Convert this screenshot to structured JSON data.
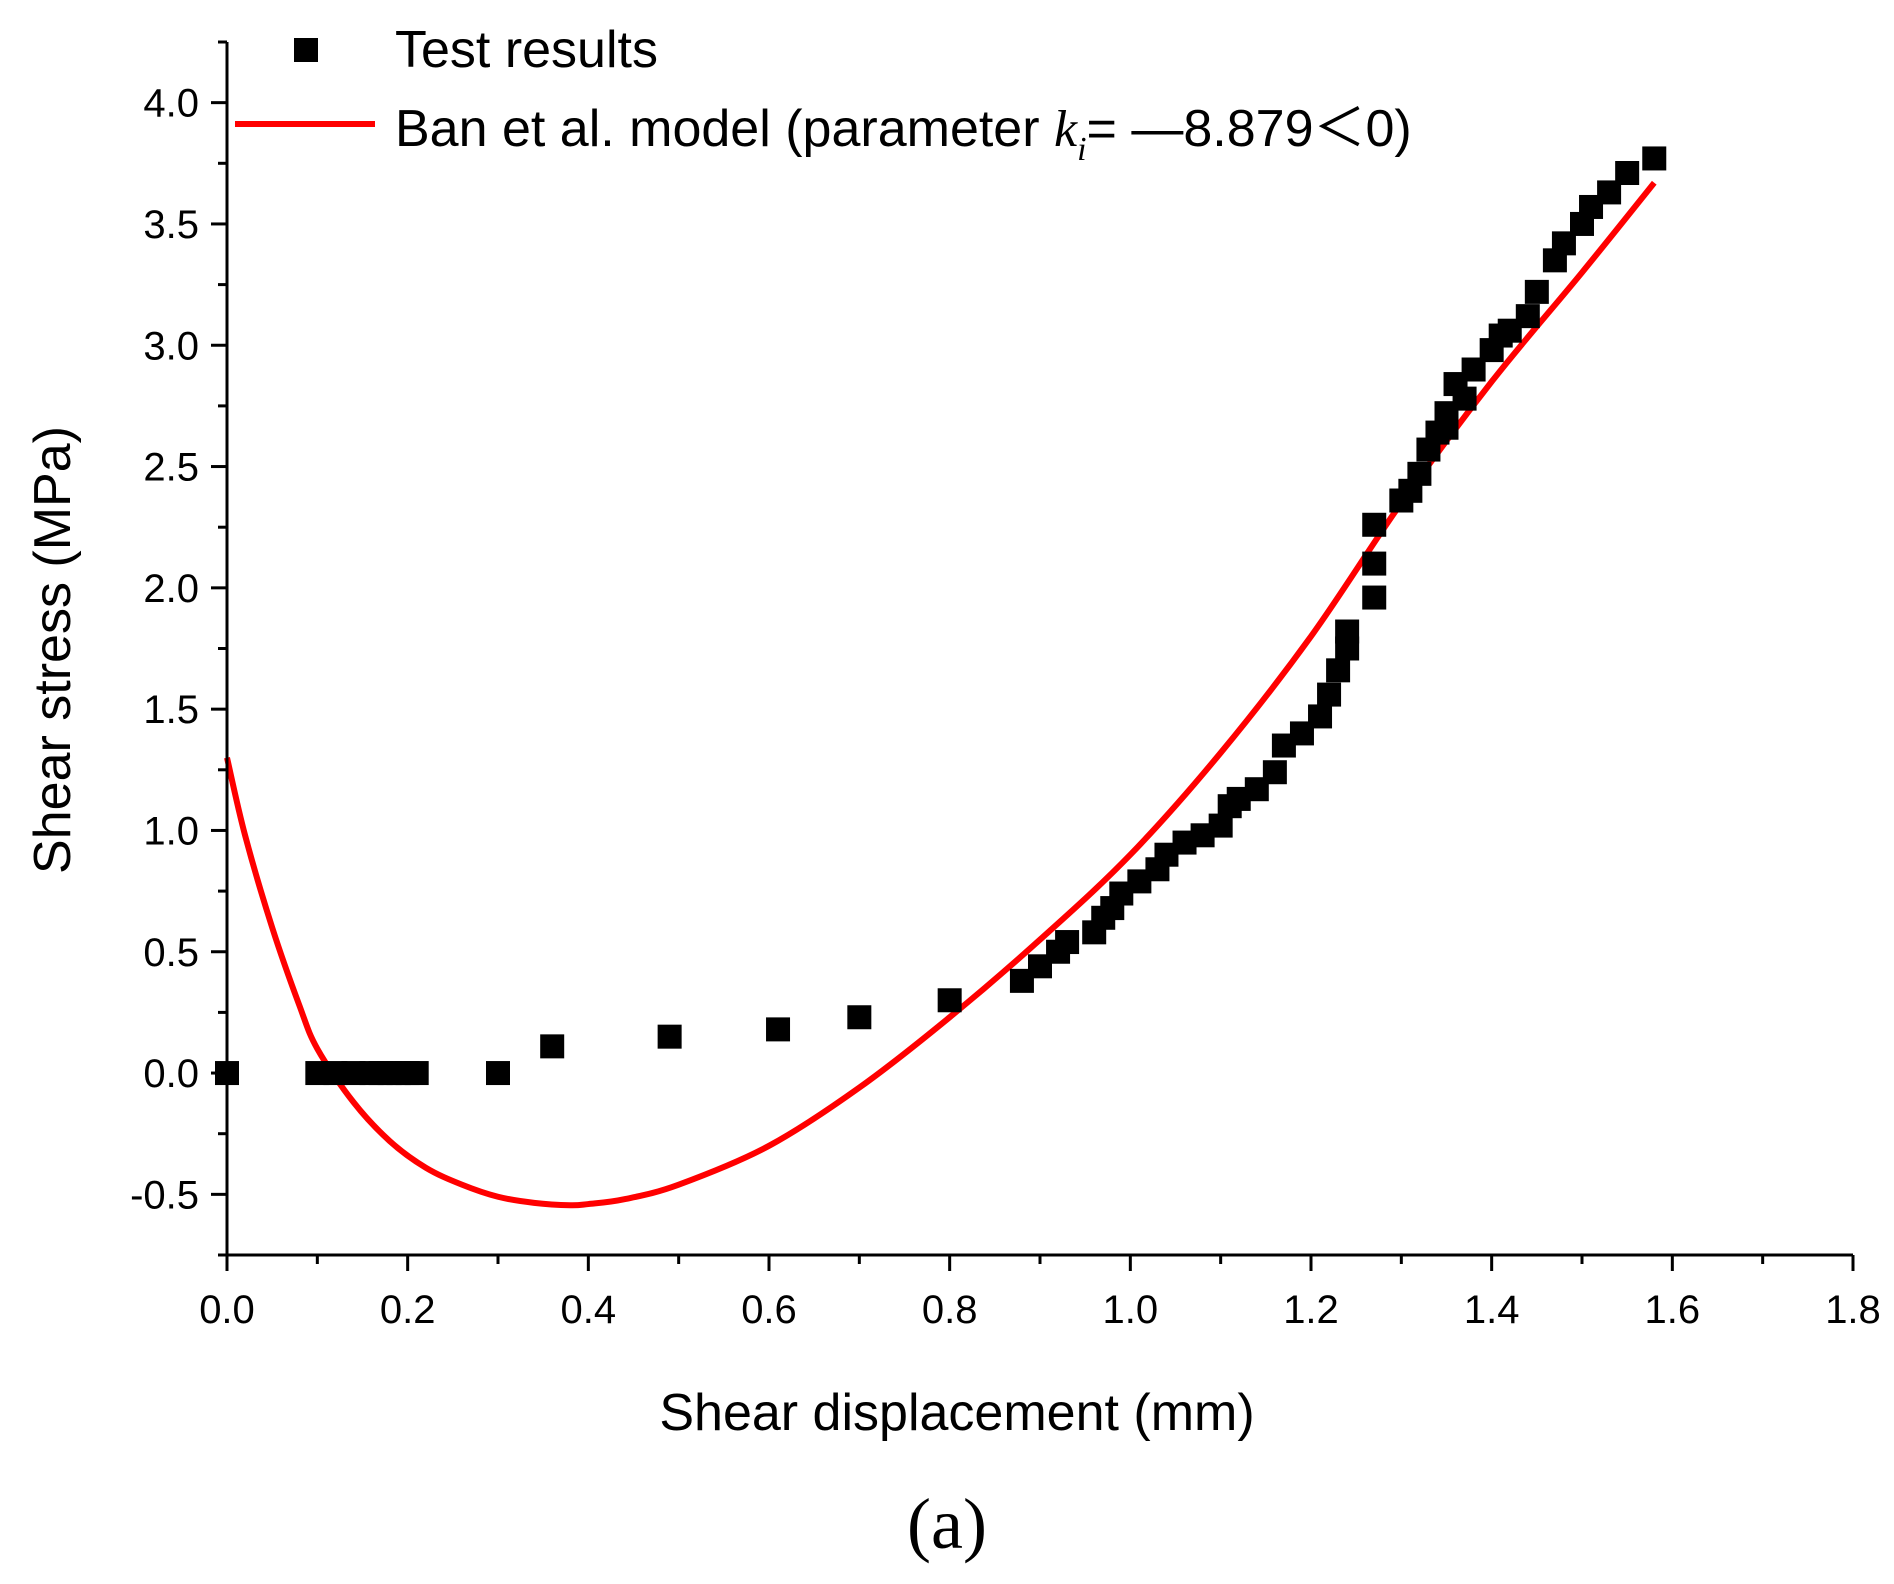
{
  "chart_data": {
    "type": "scatter",
    "title": "",
    "xlabel": "Shear displacement (mm)",
    "ylabel": "Shear stress (MPa)",
    "xlim": [
      0.0,
      1.8
    ],
    "ylim": [
      -0.75,
      4.25
    ],
    "x_ticks": [
      0.0,
      0.2,
      0.4,
      0.6,
      0.8,
      1.0,
      1.2,
      1.4,
      1.6,
      1.8
    ],
    "x_tick_labels": [
      "0.0",
      "0.2",
      "0.4",
      "0.6",
      "0.8",
      "1.0",
      "1.2",
      "1.4",
      "1.6",
      "1.8"
    ],
    "y_ticks": [
      -0.5,
      0.0,
      0.5,
      1.0,
      1.5,
      2.0,
      2.5,
      3.0,
      3.5,
      4.0
    ],
    "y_tick_labels": [
      "-0.5",
      "0.0",
      "0.5",
      "1.0",
      "1.5",
      "2.0",
      "2.5",
      "3.0",
      "3.5",
      "4.0"
    ],
    "panel_label": "(a)",
    "legend": {
      "position": "top-left",
      "test_label": "Test results",
      "model_prefix": "Ban et al. model (parameter ",
      "model_k": "k",
      "model_sub": "i",
      "model_suffix": "= —8.879＜0)"
    },
    "series": [
      {
        "name": "Test results",
        "kind": "scatter",
        "marker": "square",
        "color": "#000000",
        "x": [
          0.0,
          0.1,
          0.12,
          0.14,
          0.16,
          0.17,
          0.18,
          0.19,
          0.2,
          0.21,
          0.3,
          0.36,
          0.49,
          0.61,
          0.7,
          0.8,
          0.88,
          0.9,
          0.92,
          0.93,
          0.96,
          0.97,
          0.98,
          0.99,
          1.01,
          1.03,
          1.04,
          1.06,
          1.08,
          1.1,
          1.11,
          1.12,
          1.14,
          1.16,
          1.17,
          1.19,
          1.21,
          1.22,
          1.23,
          1.24,
          1.24,
          1.27,
          1.27,
          1.27,
          1.3,
          1.31,
          1.32,
          1.33,
          1.34,
          1.35,
          1.35,
          1.36,
          1.37,
          1.38,
          1.4,
          1.41,
          1.42,
          1.44,
          1.45,
          1.47,
          1.48,
          1.5,
          1.51,
          1.53,
          1.55,
          1.58
        ],
        "y": [
          0.0,
          0.0,
          0.0,
          0.0,
          0.0,
          0.0,
          0.0,
          0.0,
          0.0,
          0.0,
          0.0,
          0.11,
          0.15,
          0.18,
          0.23,
          0.3,
          0.38,
          0.44,
          0.5,
          0.54,
          0.58,
          0.64,
          0.68,
          0.74,
          0.79,
          0.84,
          0.9,
          0.95,
          0.98,
          1.02,
          1.1,
          1.13,
          1.17,
          1.24,
          1.35,
          1.4,
          1.47,
          1.56,
          1.66,
          1.75,
          1.82,
          1.96,
          2.1,
          2.26,
          2.36,
          2.4,
          2.47,
          2.57,
          2.64,
          2.72,
          2.66,
          2.84,
          2.78,
          2.9,
          2.98,
          3.04,
          3.06,
          3.12,
          3.22,
          3.35,
          3.42,
          3.5,
          3.57,
          3.63,
          3.71,
          3.77
        ]
      },
      {
        "name": "Ban et al. model",
        "kind": "line",
        "color": "#ff0000",
        "x": [
          0.0,
          0.02,
          0.05,
          0.08,
          0.1,
          0.14,
          0.18,
          0.22,
          0.26,
          0.3,
          0.34,
          0.38,
          0.4,
          0.44,
          0.5,
          0.6,
          0.7,
          0.8,
          0.9,
          1.0,
          1.1,
          1.2,
          1.3,
          1.4,
          1.5,
          1.58
        ],
        "y": [
          1.3,
          0.98,
          0.6,
          0.28,
          0.1,
          -0.12,
          -0.28,
          -0.39,
          -0.46,
          -0.51,
          -0.535,
          -0.545,
          -0.54,
          -0.52,
          -0.46,
          -0.3,
          -0.06,
          0.23,
          0.55,
          0.9,
          1.32,
          1.8,
          2.35,
          2.85,
          3.3,
          3.67
        ]
      }
    ]
  }
}
